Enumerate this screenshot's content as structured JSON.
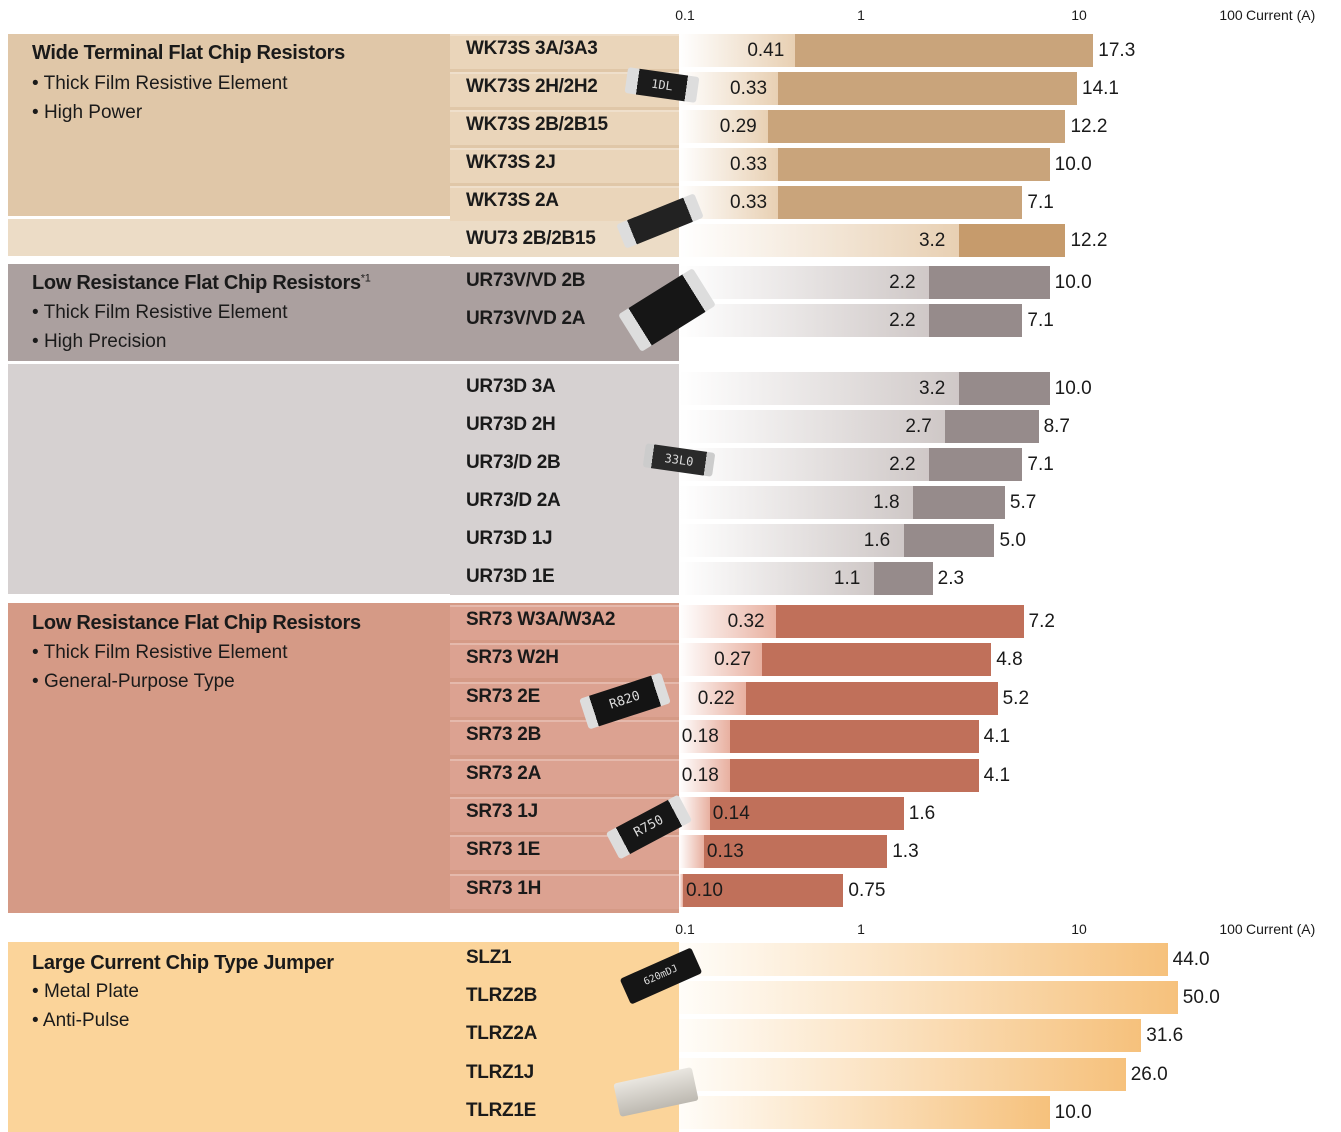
{
  "axis": {
    "ticks": [
      "0.1",
      "1",
      "10",
      "100"
    ],
    "unit_label": "Current (A)",
    "scale": "log"
  },
  "colors": {
    "wide_bg": "#e0c7a8",
    "wide_bar": "#c9a47b",
    "lrv_bg": "#aba09f",
    "lrd_bg": "#d6d1d1",
    "lr_bar": "#968b8b",
    "sr_bg": "#d59a86",
    "sr_bar": "#c0705a",
    "lc_bg": "#fbd49a",
    "lc_bar": "#f6c17c"
  },
  "groups": [
    {
      "id": "wide",
      "title": "Wide Terminal Flat Chip Resistors",
      "sup": "",
      "bullets": [
        "Thick Film Resistive Element",
        "High Power"
      ]
    },
    {
      "id": "lrv",
      "title": "Low Resistance Flat Chip Resistors",
      "sup": "*1",
      "bullets": [
        "Thick Film Resistive Element",
        "High Precision"
      ]
    },
    {
      "id": "sr",
      "title": "Low Resistance Flat Chip Resistors",
      "sup": "",
      "bullets": [
        "Thick Film Resistive Element",
        "General-Purpose Type"
      ]
    },
    {
      "id": "lc",
      "title": "Large Current Chip Type Jumper",
      "sup": "",
      "bullets": [
        "Metal Plate",
        "Anti-Pulse"
      ]
    }
  ],
  "chip_labels": [
    "1DL",
    "33L0",
    "R820",
    "R750",
    "620mDJ"
  ],
  "chart_data": {
    "type": "bar",
    "orientation": "horizontal",
    "xscale": "log",
    "xlim": [
      0.1,
      100
    ],
    "xlabel": "Current (A)",
    "xticks": [
      "0.1",
      "1",
      "10",
      "100"
    ],
    "rows": [
      {
        "product": "WK73S 3A/3A3",
        "min": 0.41,
        "min_label": "0.41",
        "max": 17.3,
        "max_label": "17.3"
      },
      {
        "product": "WK73S 2H/2H2",
        "min": 0.33,
        "min_label": "0.33",
        "max": 14.1,
        "max_label": "14.1"
      },
      {
        "product": "WK73S 2B/2B15",
        "min": 0.29,
        "min_label": "0.29",
        "max": 12.2,
        "max_label": "12.2"
      },
      {
        "product": "WK73S 2J",
        "min": 0.33,
        "min_label": "0.33",
        "max": 10.0,
        "max_label": "10.0"
      },
      {
        "product": "WK73S 2A",
        "min": 0.33,
        "min_label": "0.33",
        "max": 7.1,
        "max_label": "7.1"
      },
      {
        "product": "WU73 2B/2B15",
        "min": 3.2,
        "min_label": "3.2",
        "max": 12.2,
        "max_label": "12.2"
      },
      {
        "product": "UR73V/VD 2B",
        "min": 2.2,
        "min_label": "2.2",
        "max": 10.0,
        "max_label": "10.0"
      },
      {
        "product": "UR73V/VD 2A",
        "min": 2.2,
        "min_label": "2.2",
        "max": 7.1,
        "max_label": "7.1"
      },
      {
        "product": "UR73D 3A",
        "min": 3.2,
        "min_label": "3.2",
        "max": 10.0,
        "max_label": "10.0"
      },
      {
        "product": "UR73D 2H",
        "min": 2.7,
        "min_label": "2.7",
        "max": 8.7,
        "max_label": "8.7"
      },
      {
        "product": "UR73/D 2B",
        "min": 2.2,
        "min_label": "2.2",
        "max": 7.1,
        "max_label": "7.1"
      },
      {
        "product": "UR73/D 2A",
        "min": 1.8,
        "min_label": "1.8",
        "max": 5.7,
        "max_label": "5.7"
      },
      {
        "product": "UR73D 1J",
        "min": 1.6,
        "min_label": "1.6",
        "max": 5.0,
        "max_label": "5.0"
      },
      {
        "product": "UR73D 1E",
        "min": 1.1,
        "min_label": "1.1",
        "max": 2.3,
        "max_label": "2.3"
      },
      {
        "product": "SR73 W3A/W3A2",
        "min": 0.32,
        "min_label": "0.32",
        "max": 7.2,
        "max_label": "7.2"
      },
      {
        "product": "SR73 W2H",
        "min": 0.27,
        "min_label": "0.27",
        "max": 4.8,
        "max_label": "4.8"
      },
      {
        "product": "SR73 2E",
        "min": 0.22,
        "min_label": "0.22",
        "max": 5.2,
        "max_label": "5.2"
      },
      {
        "product": "SR73 2B",
        "min": 0.18,
        "min_label": "0.18",
        "max": 4.1,
        "max_label": "4.1"
      },
      {
        "product": "SR73 2A",
        "min": 0.18,
        "min_label": "0.18",
        "max": 4.1,
        "max_label": "4.1"
      },
      {
        "product": "SR73 1J",
        "min": 0.14,
        "min_label": "0.14",
        "max": 1.6,
        "max_label": "1.6"
      },
      {
        "product": "SR73 1E",
        "min": 0.13,
        "min_label": "0.13",
        "max": 1.3,
        "max_label": "1.3"
      },
      {
        "product": "SR73 1H",
        "min": 0.1,
        "min_label": "0.10",
        "max": 0.75,
        "max_label": "0.75"
      },
      {
        "product": "SLZ1",
        "min": null,
        "min_label": "",
        "max": 44.0,
        "max_label": "44.0"
      },
      {
        "product": "TLRZ2B",
        "min": null,
        "min_label": "",
        "max": 50.0,
        "max_label": "50.0"
      },
      {
        "product": "TLRZ2A",
        "min": null,
        "min_label": "",
        "max": 31.6,
        "max_label": "31.6"
      },
      {
        "product": "TLRZ1J",
        "min": null,
        "min_label": "",
        "max": 26.0,
        "max_label": "26.0"
      },
      {
        "product": "TLRZ1E",
        "min": null,
        "min_label": "",
        "max": 10.0,
        "max_label": "10.0"
      }
    ]
  }
}
